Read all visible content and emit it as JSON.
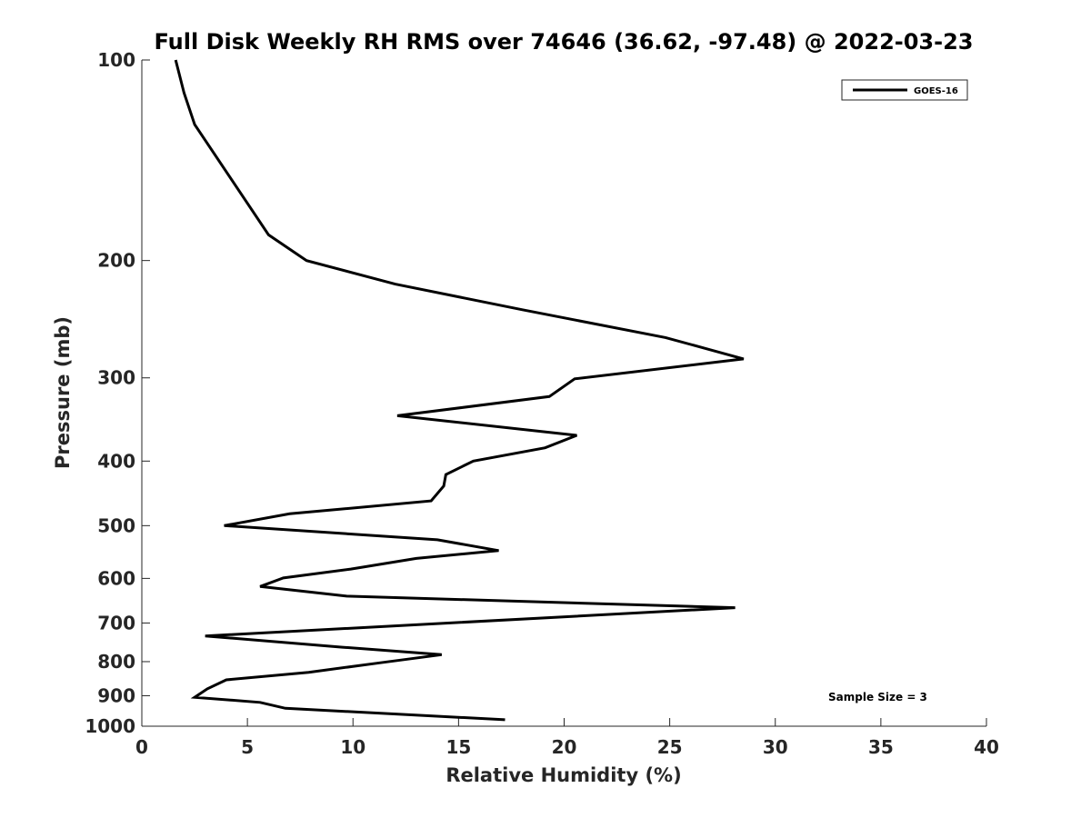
{
  "chart_data": {
    "type": "line",
    "title": "Full Disk Weekly RH RMS over 74646 (36.62, -97.48) @ 2022-03-23",
    "xlabel": "Relative Humidity (%)",
    "ylabel": "Pressure (mb)",
    "xlim": [
      0,
      40
    ],
    "ylim": [
      100,
      1000
    ],
    "y_scale": "log",
    "y_reversed": true,
    "xticks": [
      0,
      5,
      10,
      15,
      20,
      25,
      30,
      35,
      40
    ],
    "yticks": [
      100,
      200,
      300,
      400,
      500,
      600,
      700,
      800,
      900,
      1000
    ],
    "grid": false,
    "legend_position": "top-right",
    "annotation": "Sample Size = 3",
    "series": [
      {
        "name": "GOES-16",
        "color": "#000000",
        "x": [
          1.6,
          2.0,
          2.5,
          6.0,
          7.8,
          12.0,
          18.0,
          24.8,
          28.5,
          20.5,
          19.3,
          12.1,
          20.6,
          19.1,
          15.7,
          14.4,
          14.3,
          13.7,
          7.0,
          3.9,
          14.0,
          16.9,
          13.0,
          9.9,
          6.7,
          5.6,
          9.7,
          28.1,
          14.5,
          3.0,
          9.5,
          14.2,
          11.3,
          7.9,
          4.0,
          3.1,
          2.5,
          5.6,
          6.8,
          17.2
        ],
        "y": [
          100,
          112,
          125,
          183,
          200,
          217,
          237,
          261,
          281,
          301,
          320,
          342,
          366,
          382,
          400,
          419,
          436,
          459,
          480,
          500,
          525,
          545,
          560,
          581,
          599,
          617,
          638,
          664,
          700,
          732,
          761,
          781,
          803,
          830,
          852,
          879,
          905,
          921,
          940,
          978
        ]
      }
    ]
  }
}
